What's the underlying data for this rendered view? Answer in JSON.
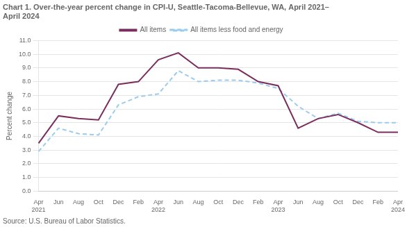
{
  "chart_data": {
    "type": "line",
    "title": "Chart 1. Over-the-year percent change in CPI-U, Seattle-Tacoma-Bellevue, WA, April 2021–\nApril 2024",
    "y_label": "Percent change",
    "annotation": "Source: U.S. Bureau of Labor Statistics.",
    "categories": [
      "Apr\n2021",
      "Jun",
      "Aug",
      "Oct",
      "Dec",
      "Feb",
      "Apr\n2022",
      "Jun",
      "Aug",
      "Oct",
      "Dec",
      "Feb",
      "Apr\n2023",
      "Jun",
      "Aug",
      "Oct",
      "Dec",
      "Feb",
      "Apr\n2024"
    ],
    "series": [
      {
        "name": "All items",
        "color": "#7b2d5e",
        "line_style": "solid",
        "marker": "none",
        "values": [
          3.5,
          5.5,
          5.3,
          5.2,
          7.8,
          8.0,
          9.6,
          10.1,
          9.0,
          9.0,
          8.9,
          8.0,
          7.7,
          4.6,
          5.3,
          5.6,
          5.0,
          4.3,
          4.3
        ]
      },
      {
        "name": "All items less food and energy",
        "color": "#99ccee",
        "line_style": "dashed",
        "marker": "none",
        "values": [
          2.9,
          4.6,
          4.2,
          4.1,
          6.3,
          6.9,
          7.1,
          8.8,
          8.0,
          8.1,
          8.1,
          7.9,
          7.5,
          6.2,
          5.3,
          5.7,
          5.1,
          5.0,
          5.0
        ]
      }
    ],
    "ylim": [
      0.0,
      11.0
    ],
    "yticks": [
      {
        "value": 0,
        "label": "0.0"
      },
      {
        "value": 1,
        "label": "1.0"
      },
      {
        "value": 2,
        "label": "2.0"
      },
      {
        "value": 3,
        "label": "3.0"
      },
      {
        "value": 4,
        "label": "4.0"
      },
      {
        "value": 5,
        "label": "5.0"
      },
      {
        "value": 6,
        "label": "6.0"
      },
      {
        "value": 7,
        "label": "7.0"
      },
      {
        "value": 8,
        "label": "8.0"
      },
      {
        "value": 9,
        "label": "9.0"
      },
      {
        "value": 10,
        "label": "10.0"
      },
      {
        "value": 11,
        "label": "11.0"
      }
    ],
    "grid": true,
    "legend": "top"
  }
}
